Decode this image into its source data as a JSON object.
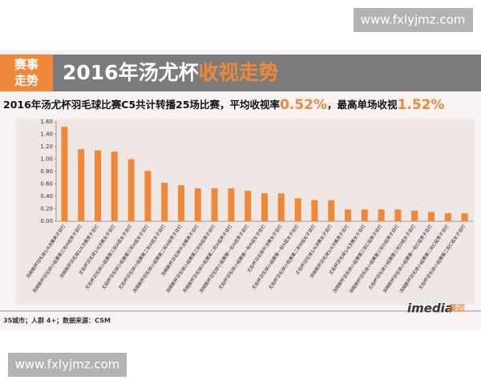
{
  "watermark_top": "www.fxlyjmz.com",
  "watermark_bottom": "www.fxlyjmz.com",
  "header": {
    "badge": [
      "赛事",
      "走势"
    ],
    "title_main": "2016年汤尤杯",
    "title_highlight": "收视走势"
  },
  "summary": {
    "text_1": "2016年汤尤杯羽毛球比赛C5共计转播25场比赛，平均收视率",
    "avg": "0.52%",
    "text_2": "，最高单场收视",
    "max": "1.52%"
  },
  "footer": {
    "note": "35城市；人群 4+；数据来源：CSM",
    "logo": "imedia",
    "logo_cn": "英迈"
  },
  "chart_data": {
    "type": "bar",
    "categories": [
      "汤姆斯杯羽毛球1/4决赛男子双打",
      "汤姆斯杯羽毛球小组赛第三轮A组男子双打",
      "汤姆斯杯羽毛球1/4决赛男子双打",
      "尤伯杯羽毛球1/4决赛女子双打",
      "尤伯杯羽毛球小组赛第三轮A组女子双打",
      "尤伯杯羽毛球小组赛第三轮A组女子双打",
      "尤伯杯羽毛球小组赛第二轮A组女子双打",
      "汤姆斯杯羽毛球小组赛第二轮A组男子双打",
      "汤姆斯杯羽毛球半决赛男子双打",
      "汤姆斯杯羽毛球小组赛第三轮B组男子双打",
      "汤姆斯杯羽毛球小组赛第二轮A组男子双打",
      "汤姆斯杯羽毛球小组赛第一轮A组男子双打",
      "尤伯杯羽毛球小组赛第一轮A组女子双打",
      "尤伯杯羽毛球半决赛女子双打",
      "尤伯杯羽毛球小组赛第一轮A组女子双打",
      "尤伯杯羽毛球小组赛第二轮B组女子双打",
      "尤伯杯羽毛球1/4决赛女子双打",
      "汤姆斯杯羽毛球1/4决赛男子双打",
      "尤伯杯羽毛球1/4决赛女子双打",
      "汤姆斯杯羽毛球小组赛第三轮C组男子双打",
      "汤姆斯杯羽毛球小组赛第三轮D组男子双打",
      "尤伯杯羽毛球小组赛第三轮D组女子双打",
      "汤姆斯杯羽毛球小组赛第一轮C组男子双打",
      "汤姆斯杯羽毛球小组赛第二轮C组男子双打",
      "尤伯杯羽毛球小组赛第二轮C组女子双打"
    ],
    "values": [
      1.52,
      1.16,
      1.14,
      1.12,
      1.0,
      0.81,
      0.62,
      0.58,
      0.53,
      0.53,
      0.53,
      0.49,
      0.45,
      0.45,
      0.37,
      0.34,
      0.34,
      0.19,
      0.19,
      0.19,
      0.19,
      0.17,
      0.15,
      0.13,
      0.13
    ],
    "color": "#f0883a",
    "ylim": [
      0,
      1.6
    ],
    "yticks": [
      {
        "value": 0,
        "label": "0.00"
      },
      {
        "value": 0.2,
        "label": "0.20"
      },
      {
        "value": 0.4,
        "label": "0.40"
      },
      {
        "value": 0.6,
        "label": "0.60"
      },
      {
        "value": 0.8,
        "label": "0.80"
      },
      {
        "value": 1.0,
        "label": "1.00"
      },
      {
        "value": 1.2,
        "label": "1.20"
      },
      {
        "value": 1.4,
        "label": "1.40"
      },
      {
        "value": 1.6,
        "label": "1.60"
      }
    ]
  }
}
